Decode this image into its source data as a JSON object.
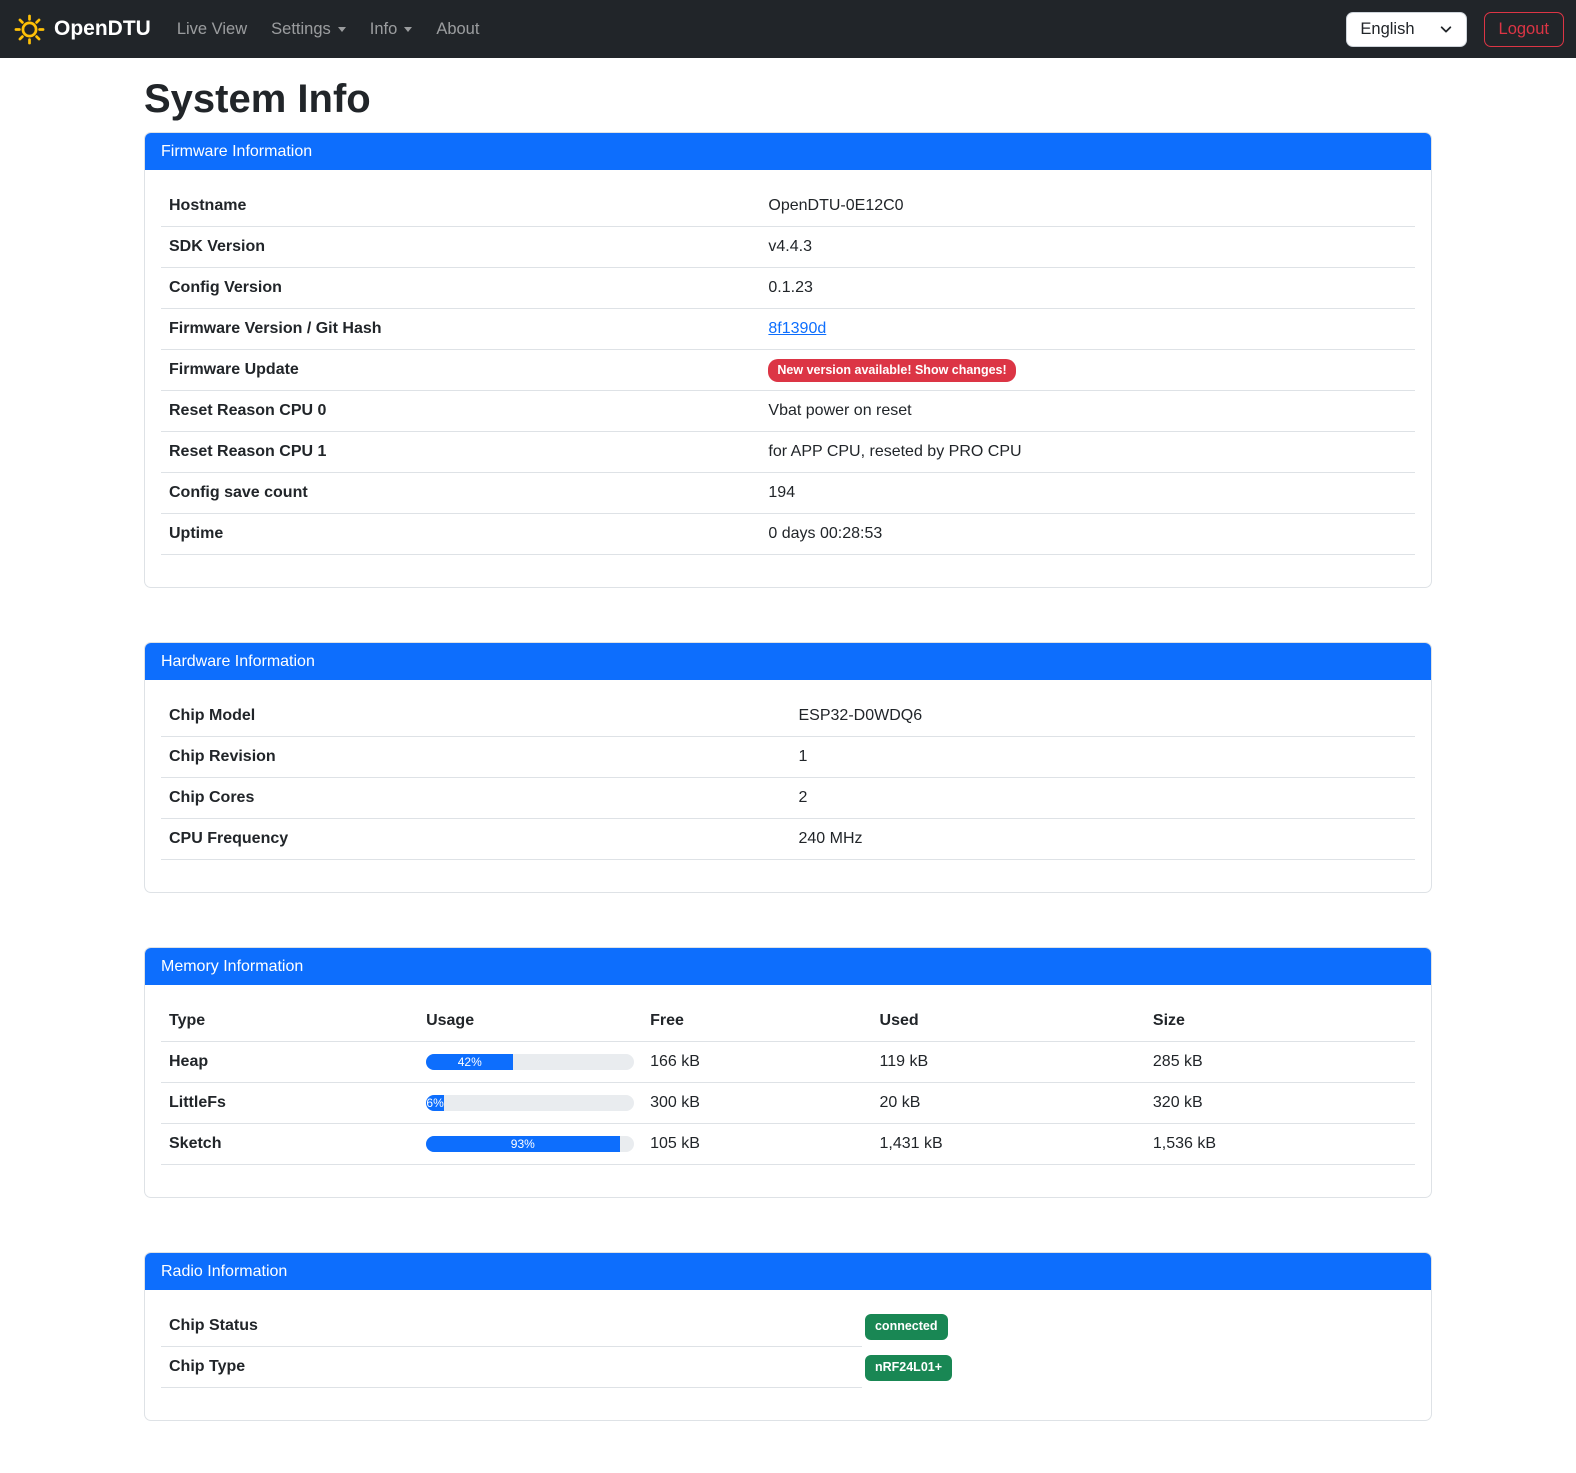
{
  "navbar": {
    "brand": "OpenDTU",
    "items": [
      {
        "label": "Live View",
        "dropdown": false
      },
      {
        "label": "Settings",
        "dropdown": true
      },
      {
        "label": "Info",
        "dropdown": true
      },
      {
        "label": "About",
        "dropdown": false
      }
    ],
    "language_selected": "English",
    "logout_label": "Logout"
  },
  "page_title": "System Info",
  "icons": {
    "brand": "sun-icon",
    "language": "chevron-down-icon",
    "nav_dropdown": "caret-down-icon"
  },
  "colors": {
    "primary": "#0d6efd",
    "danger": "#dc3545",
    "success": "#198754",
    "logo_yellow": "#ffc107",
    "navbar_bg": "#212529",
    "border": "#dee2e6",
    "progress_track": "#e9ecef"
  },
  "cards": {
    "firmware": {
      "title": "Firmware Information",
      "rows": [
        {
          "label": "Hostname",
          "value": "OpenDTU-0E12C0"
        },
        {
          "label": "SDK Version",
          "value": "v4.4.3"
        },
        {
          "label": "Config Version",
          "value": "0.1.23"
        },
        {
          "label": "Firmware Version / Git Hash",
          "value": "8f1390d",
          "style": "link"
        },
        {
          "label": "Firmware Update",
          "value": "New version available! Show changes!",
          "style": "danger-badge"
        },
        {
          "label": "Reset Reason CPU 0",
          "value": "Vbat power on reset"
        },
        {
          "label": "Reset Reason CPU 1",
          "value": "for APP CPU, reseted by PRO CPU"
        },
        {
          "label": "Config save count",
          "value": "194"
        },
        {
          "label": "Uptime",
          "value": "0 days 00:28:53"
        }
      ]
    },
    "hardware": {
      "title": "Hardware Information",
      "rows": [
        {
          "label": "Chip Model",
          "value": "ESP32-D0WDQ6"
        },
        {
          "label": "Chip Revision",
          "value": "1"
        },
        {
          "label": "Chip Cores",
          "value": "2"
        },
        {
          "label": "CPU Frequency",
          "value": "240 MHz"
        }
      ]
    },
    "memory": {
      "title": "Memory Information",
      "columns": [
        "Type",
        "Usage",
        "Free",
        "Used",
        "Size"
      ],
      "rows": [
        {
          "type": "Heap",
          "usage_percent": 42,
          "free": "166 kB",
          "used": "119 kB",
          "size": "285 kB"
        },
        {
          "type": "LittleFs",
          "usage_percent": 6,
          "free": "300 kB",
          "used": "20 kB",
          "size": "320 kB"
        },
        {
          "type": "Sketch",
          "usage_percent": 93,
          "free": "105 kB",
          "used": "1,431 kB",
          "size": "1,536 kB"
        }
      ]
    },
    "radio": {
      "title": "Radio Information",
      "rows": [
        {
          "label": "Chip Status",
          "badge": "connected"
        },
        {
          "label": "Chip Type",
          "badge": "nRF24L01+"
        }
      ]
    }
  }
}
